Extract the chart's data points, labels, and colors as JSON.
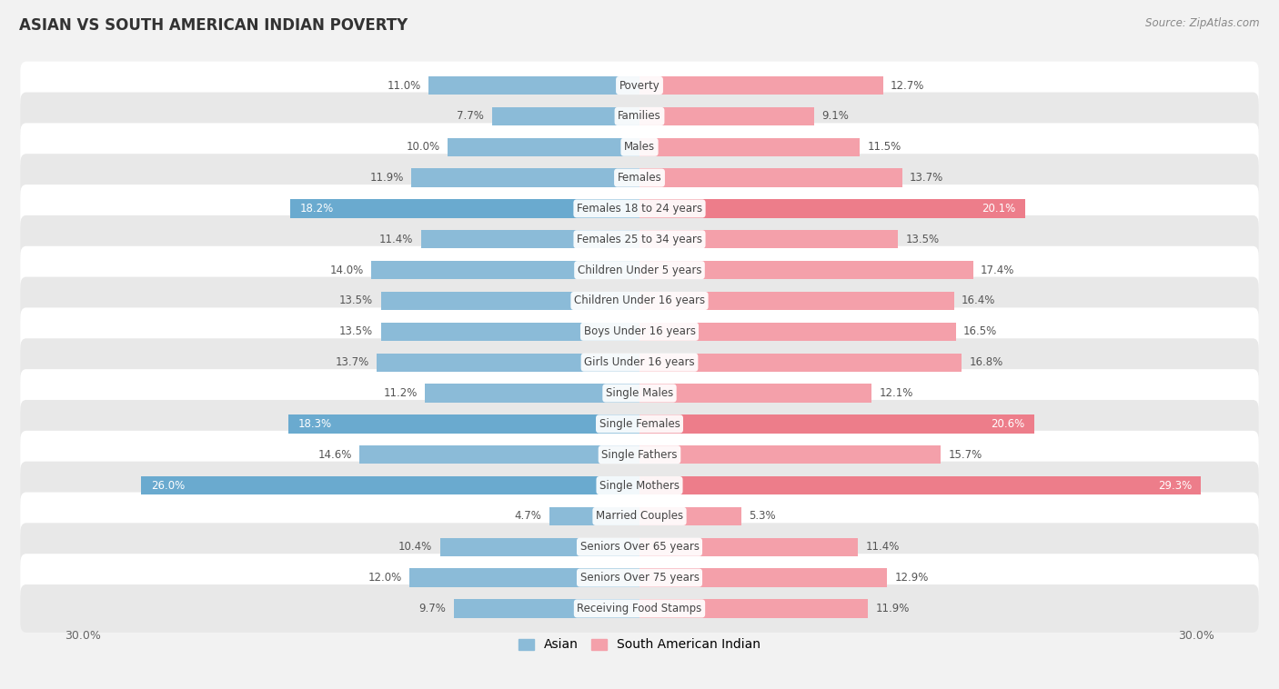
{
  "title": "ASIAN VS SOUTH AMERICAN INDIAN POVERTY",
  "source": "Source: ZipAtlas.com",
  "categories": [
    "Poverty",
    "Families",
    "Males",
    "Females",
    "Females 18 to 24 years",
    "Females 25 to 34 years",
    "Children Under 5 years",
    "Children Under 16 years",
    "Boys Under 16 years",
    "Girls Under 16 years",
    "Single Males",
    "Single Females",
    "Single Fathers",
    "Single Mothers",
    "Married Couples",
    "Seniors Over 65 years",
    "Seniors Over 75 years",
    "Receiving Food Stamps"
  ],
  "asian_values": [
    11.0,
    7.7,
    10.0,
    11.9,
    18.2,
    11.4,
    14.0,
    13.5,
    13.5,
    13.7,
    11.2,
    18.3,
    14.6,
    26.0,
    4.7,
    10.4,
    12.0,
    9.7
  ],
  "south_american_values": [
    12.7,
    9.1,
    11.5,
    13.7,
    20.1,
    13.5,
    17.4,
    16.4,
    16.5,
    16.8,
    12.1,
    20.6,
    15.7,
    29.3,
    5.3,
    11.4,
    12.9,
    11.9
  ],
  "asian_color": "#8bbbd8",
  "south_american_color": "#f4a0aa",
  "asian_highlight_color": "#6aaacf",
  "south_american_highlight_color": "#ed7d8a",
  "highlight_rows": [
    4,
    11,
    13
  ],
  "axis_max": 30.0,
  "background_color": "#f2f2f2",
  "row_bg_color": "#ffffff",
  "row_alt_bg_color": "#e8e8e8",
  "label_color": "#444444",
  "value_color_normal": "#555555",
  "value_color_highlight": "#ffffff"
}
